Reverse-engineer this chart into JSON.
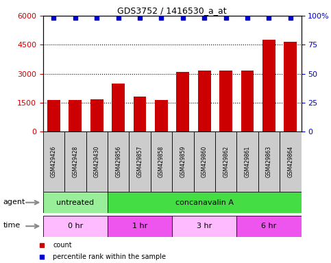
{
  "title": "GDS3752 / 1416530_a_at",
  "samples": [
    "GSM429426",
    "GSM429428",
    "GSM429430",
    "GSM429856",
    "GSM429857",
    "GSM429858",
    "GSM429859",
    "GSM429860",
    "GSM429862",
    "GSM429861",
    "GSM429863",
    "GSM429864"
  ],
  "counts": [
    1650,
    1620,
    1680,
    2500,
    1800,
    1620,
    3100,
    3150,
    3150,
    3150,
    4750,
    4650
  ],
  "percentile_ranks": [
    98,
    98,
    98,
    98,
    98,
    98,
    98,
    98,
    98,
    98,
    98,
    98
  ],
  "ylim_left": [
    0,
    6000
  ],
  "ylim_right": [
    0,
    100
  ],
  "yticks_left": [
    0,
    1500,
    3000,
    4500,
    6000
  ],
  "yticks_right": [
    0,
    25,
    50,
    75,
    100
  ],
  "bar_color": "#cc0000",
  "dot_color": "#0000cc",
  "sample_box_color": "#cccccc",
  "agent_groups": [
    {
      "label": "untreated",
      "start": 0,
      "end": 3,
      "color": "#99ee99"
    },
    {
      "label": "concanavalin A",
      "start": 3,
      "end": 12,
      "color": "#44dd44"
    }
  ],
  "time_groups": [
    {
      "label": "0 hr",
      "start": 0,
      "end": 3,
      "color": "#ffbbff"
    },
    {
      "label": "1 hr",
      "start": 3,
      "end": 6,
      "color": "#ee55ee"
    },
    {
      "label": "3 hr",
      "start": 6,
      "end": 9,
      "color": "#ffbbff"
    },
    {
      "label": "6 hr",
      "start": 9,
      "end": 12,
      "color": "#ee55ee"
    }
  ],
  "group_dividers": [
    2.5,
    5.5,
    8.5
  ],
  "legend_items": [
    {
      "label": "count",
      "color": "#cc0000"
    },
    {
      "label": "percentile rank within the sample",
      "color": "#0000cc"
    }
  ],
  "background_color": "#ffffff"
}
